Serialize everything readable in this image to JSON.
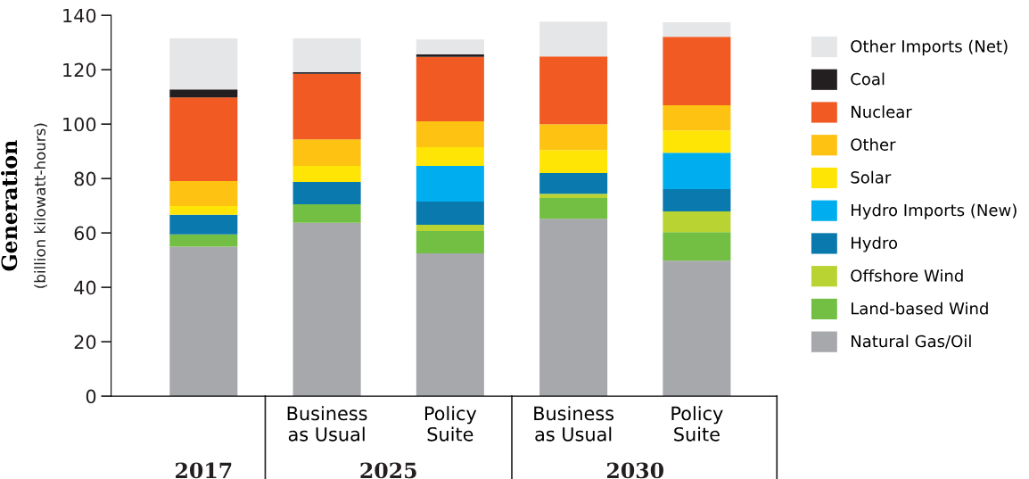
{
  "chart_data": {
    "type": "bar",
    "stacked": true,
    "ylabel": "Generation",
    "annotations": [
      "(billion kilowatt-hours)",
      "2017",
      "2025",
      "2030"
    ],
    "categories": [
      null,
      "Business\nas Usual",
      "Policy\nSuite",
      "Business\nas Usual",
      "Policy\nSuite"
    ],
    "series": [
      {
        "name": "Natural Gas/Oil",
        "color": "#a7a8ac",
        "values": [
          55,
          63.7,
          52.5,
          65.2,
          49.8
        ]
      },
      {
        "name": "Land-based Wind",
        "color": "#72bf44",
        "values": [
          4.5,
          6.8,
          8.2,
          7.6,
          10.5
        ]
      },
      {
        "name": "Offshore Wind",
        "color": "#b9d432",
        "values": [
          0,
          0,
          2.3,
          1.6,
          7.6
        ]
      },
      {
        "name": "Hydro",
        "color": "#0a79ad",
        "values": [
          7.2,
          8.2,
          8.5,
          7.6,
          8.2
        ]
      },
      {
        "name": "Hydro Imports (New)",
        "color": "#00aeef",
        "values": [
          0,
          0,
          13.1,
          0,
          13.4
        ]
      },
      {
        "name": "Solar",
        "color": "#ffe505",
        "values": [
          3.2,
          5.9,
          6.9,
          8.5,
          8.2
        ]
      },
      {
        "name": "Other",
        "color": "#fdc212",
        "values": [
          9.2,
          9.8,
          9.5,
          9.5,
          9.2
        ]
      },
      {
        "name": "Nuclear",
        "color": "#f15a22",
        "values": [
          30.7,
          24.1,
          23.7,
          24.9,
          25.2
        ]
      },
      {
        "name": "Coal",
        "color": "#231f20",
        "values": [
          3,
          0.6,
          0.9,
          0,
          0
        ]
      },
      {
        "name": "Other Imports (Net)",
        "color": "#e5e6e8",
        "values": [
          18.7,
          12.4,
          5.5,
          12.8,
          5.3
        ]
      }
    ],
    "ylim": [
      0,
      140
    ],
    "yticks": [
      0,
      20,
      40,
      60,
      80,
      100,
      120,
      140
    ],
    "legend": "right",
    "grid": false
  }
}
